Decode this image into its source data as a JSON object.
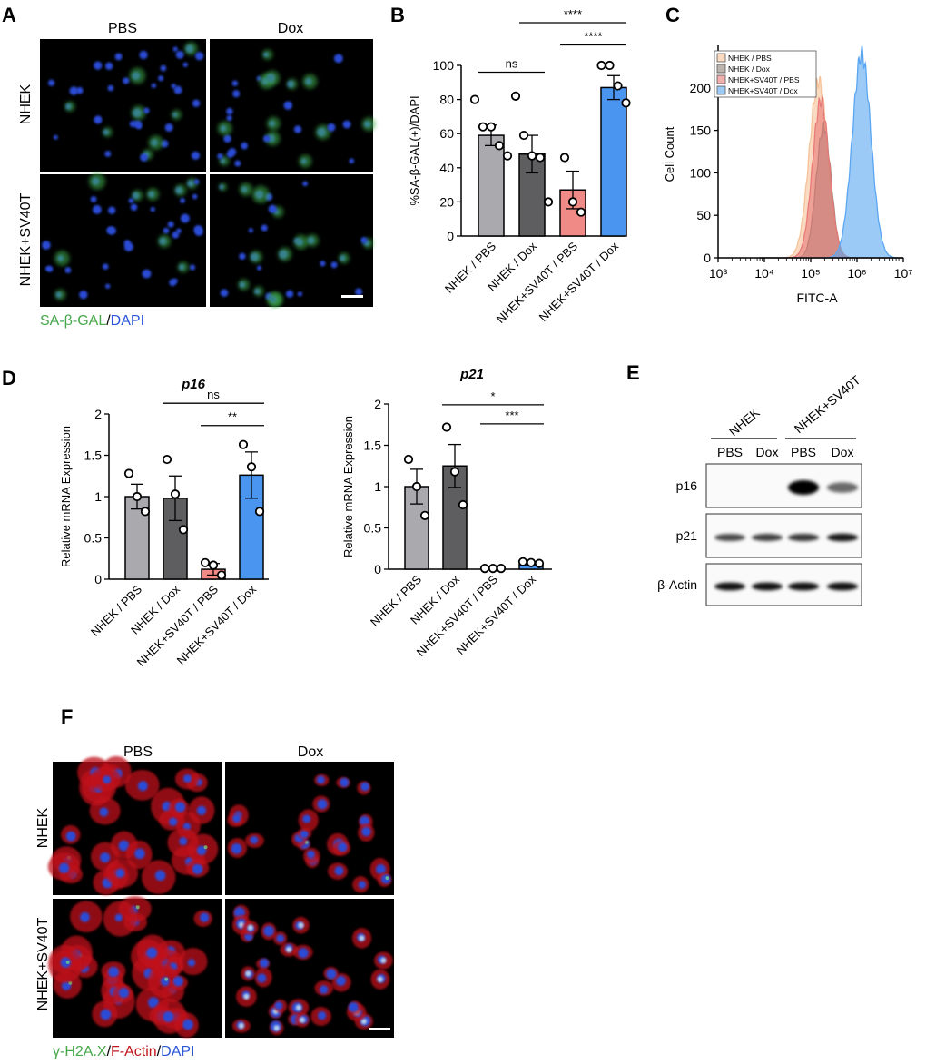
{
  "panel_letters": {
    "a": "A",
    "b": "B",
    "c": "C",
    "d": "D",
    "e": "E",
    "f": "F"
  },
  "colors": {
    "gray_light": "#a9a9ae",
    "gray_dark": "#5e5e60",
    "salmon": "#f08a86",
    "blue": "#4a95ef",
    "micro_bg": "#000000",
    "dapi_blue": "#2c4bd6",
    "gal_green": "#3fb04a",
    "actin_red": "#c0141c",
    "h2ax_green": "#7fe07a",
    "flow_peach": "#f6c39a",
    "flow_gray": "#8e8478",
    "flow_red": "#e87a78",
    "flow_blue": "#5aa6f2"
  },
  "panelA": {
    "col_pbs": "PBS",
    "col_dox": "Dox",
    "row_nhek": "NHEK",
    "row_sv40t": "NHEK+SV40T",
    "stain_green": "SA-β-GAL",
    "stain_sep": "/",
    "stain_blue": "DAPI"
  },
  "panelE": {
    "group_nhek": "NHEK",
    "group_sv40t": "NHEK+SV40T",
    "lanes": [
      "PBS",
      "Dox",
      "PBS",
      "Dox"
    ],
    "rows": [
      "p16",
      "p21",
      "β-Actin"
    ],
    "band_intensity": {
      "p16": [
        0,
        0,
        1.0,
        0.35
      ],
      "p21": [
        0.55,
        0.6,
        0.65,
        0.85
      ],
      "β-Actin": [
        0.9,
        0.9,
        0.9,
        0.9
      ]
    }
  },
  "panelF": {
    "col_pbs": "PBS",
    "col_dox": "Dox",
    "row_nhek": "NHEK",
    "row_sv40t": "NHEK+SV40T",
    "stain_green": "γ-H2A.X",
    "stain_sep1": "/",
    "stain_red": "F-Actin",
    "stain_sep2": "/",
    "stain_blue": "DAPI"
  },
  "chart_data": [
    {
      "id": "B",
      "type": "bar",
      "title": "",
      "ylabel": "%SA-β-GAL(+)/DAPI",
      "xlabel": "",
      "categories": [
        "NHEK / PBS",
        "NHEK / Dox",
        "NHEK+SV40T / PBS",
        "NHEK+SV40T / Dox"
      ],
      "values": [
        59,
        48,
        27,
        87
      ],
      "errors": [
        6,
        11,
        11,
        7
      ],
      "points": [
        [
          80,
          64,
          64,
          53,
          47
        ],
        [
          82,
          59,
          47,
          46,
          20
        ],
        [
          46,
          20,
          14
        ],
        [
          100,
          100,
          88,
          78
        ]
      ],
      "ylim": [
        0,
        100
      ],
      "yticks": [
        0,
        20,
        40,
        60,
        80,
        100
      ],
      "significance": [
        {
          "from": 0,
          "to": 1,
          "label": "ns",
          "y": 96
        },
        {
          "from": 2,
          "to": 3,
          "label": "****",
          "y": 112
        },
        {
          "from": 1,
          "to": 3,
          "label": "****",
          "y": 125
        }
      ]
    },
    {
      "id": "C",
      "type": "area",
      "title": "",
      "xlabel": "FITC-A",
      "ylabel": "Cell Count",
      "x_scale": "log",
      "xlim": [
        1000,
        10000000
      ],
      "xticks": [
        "10³",
        "10⁴",
        "10⁵",
        "10⁶",
        "10⁷"
      ],
      "ylim": [
        0,
        250
      ],
      "yticks": [
        0,
        50,
        100,
        150,
        200
      ],
      "legend_position": "top-left",
      "series": [
        {
          "name": "NHEK / PBS",
          "color_key": "flow_peach",
          "peak_log10": 5.17,
          "peak_count": 208,
          "width": 0.2
        },
        {
          "name": "NHEK / Dox",
          "color_key": "flow_gray",
          "peak_log10": 5.28,
          "peak_count": 155,
          "width": 0.16
        },
        {
          "name": "NHEK+SV40T / PBS",
          "color_key": "flow_red",
          "peak_log10": 5.22,
          "peak_count": 185,
          "width": 0.18
        },
        {
          "name": "NHEK+SV40T / Dox",
          "color_key": "flow_blue",
          "peak_log10": 6.1,
          "peak_count": 240,
          "width": 0.2
        }
      ]
    },
    {
      "id": "D_p16",
      "type": "bar",
      "title": "p16",
      "ylabel": "Relative mRNA Expression",
      "xlabel": "",
      "categories": [
        "NHEK / PBS",
        "NHEK / Dox",
        "NHEK+SV40T / PBS",
        "NHEK+SV40T / Dox"
      ],
      "values": [
        1.0,
        0.98,
        0.12,
        1.26
      ],
      "errors": [
        0.15,
        0.27,
        0.07,
        0.28
      ],
      "points": [
        [
          1.28,
          1.0,
          0.82
        ],
        [
          1.45,
          1.03,
          0.6
        ],
        [
          0.2,
          0.17,
          0.05
        ],
        [
          1.63,
          1.36,
          0.82
        ]
      ],
      "ylim": [
        0,
        2
      ],
      "yticks": [
        "0",
        "0.5",
        "1",
        "1.5",
        "2"
      ],
      "significance": [
        {
          "from": 2,
          "to": 3,
          "label": "**",
          "y": 1.86
        },
        {
          "from": 1,
          "to": 3,
          "label": "ns",
          "y": 2.13
        }
      ]
    },
    {
      "id": "D_p21",
      "type": "bar",
      "title": "p21",
      "ylabel": "Relative mRNA Expression",
      "xlabel": "",
      "categories": [
        "NHEK / PBS",
        "NHEK / Dox",
        "NHEK+SV40T / PBS",
        "NHEK+SV40T / Dox"
      ],
      "values": [
        1.0,
        1.25,
        0.02,
        0.06
      ],
      "errors": [
        0.21,
        0.26,
        0.01,
        0.02
      ],
      "points": [
        [
          1.33,
          1.0,
          0.65
        ],
        [
          1.72,
          1.18,
          0.78
        ],
        [
          0.01,
          0.01,
          0.01
        ],
        [
          0.09,
          0.08,
          0.07
        ]
      ],
      "ylim": [
        0,
        2
      ],
      "yticks": [
        "0",
        "0.5",
        "1",
        "1.5",
        "2"
      ],
      "significance": [
        {
          "from": 2,
          "to": 3,
          "label": "***",
          "y": 1.76
        },
        {
          "from": 1,
          "to": 3,
          "label": "*",
          "y": 1.99
        }
      ]
    }
  ]
}
